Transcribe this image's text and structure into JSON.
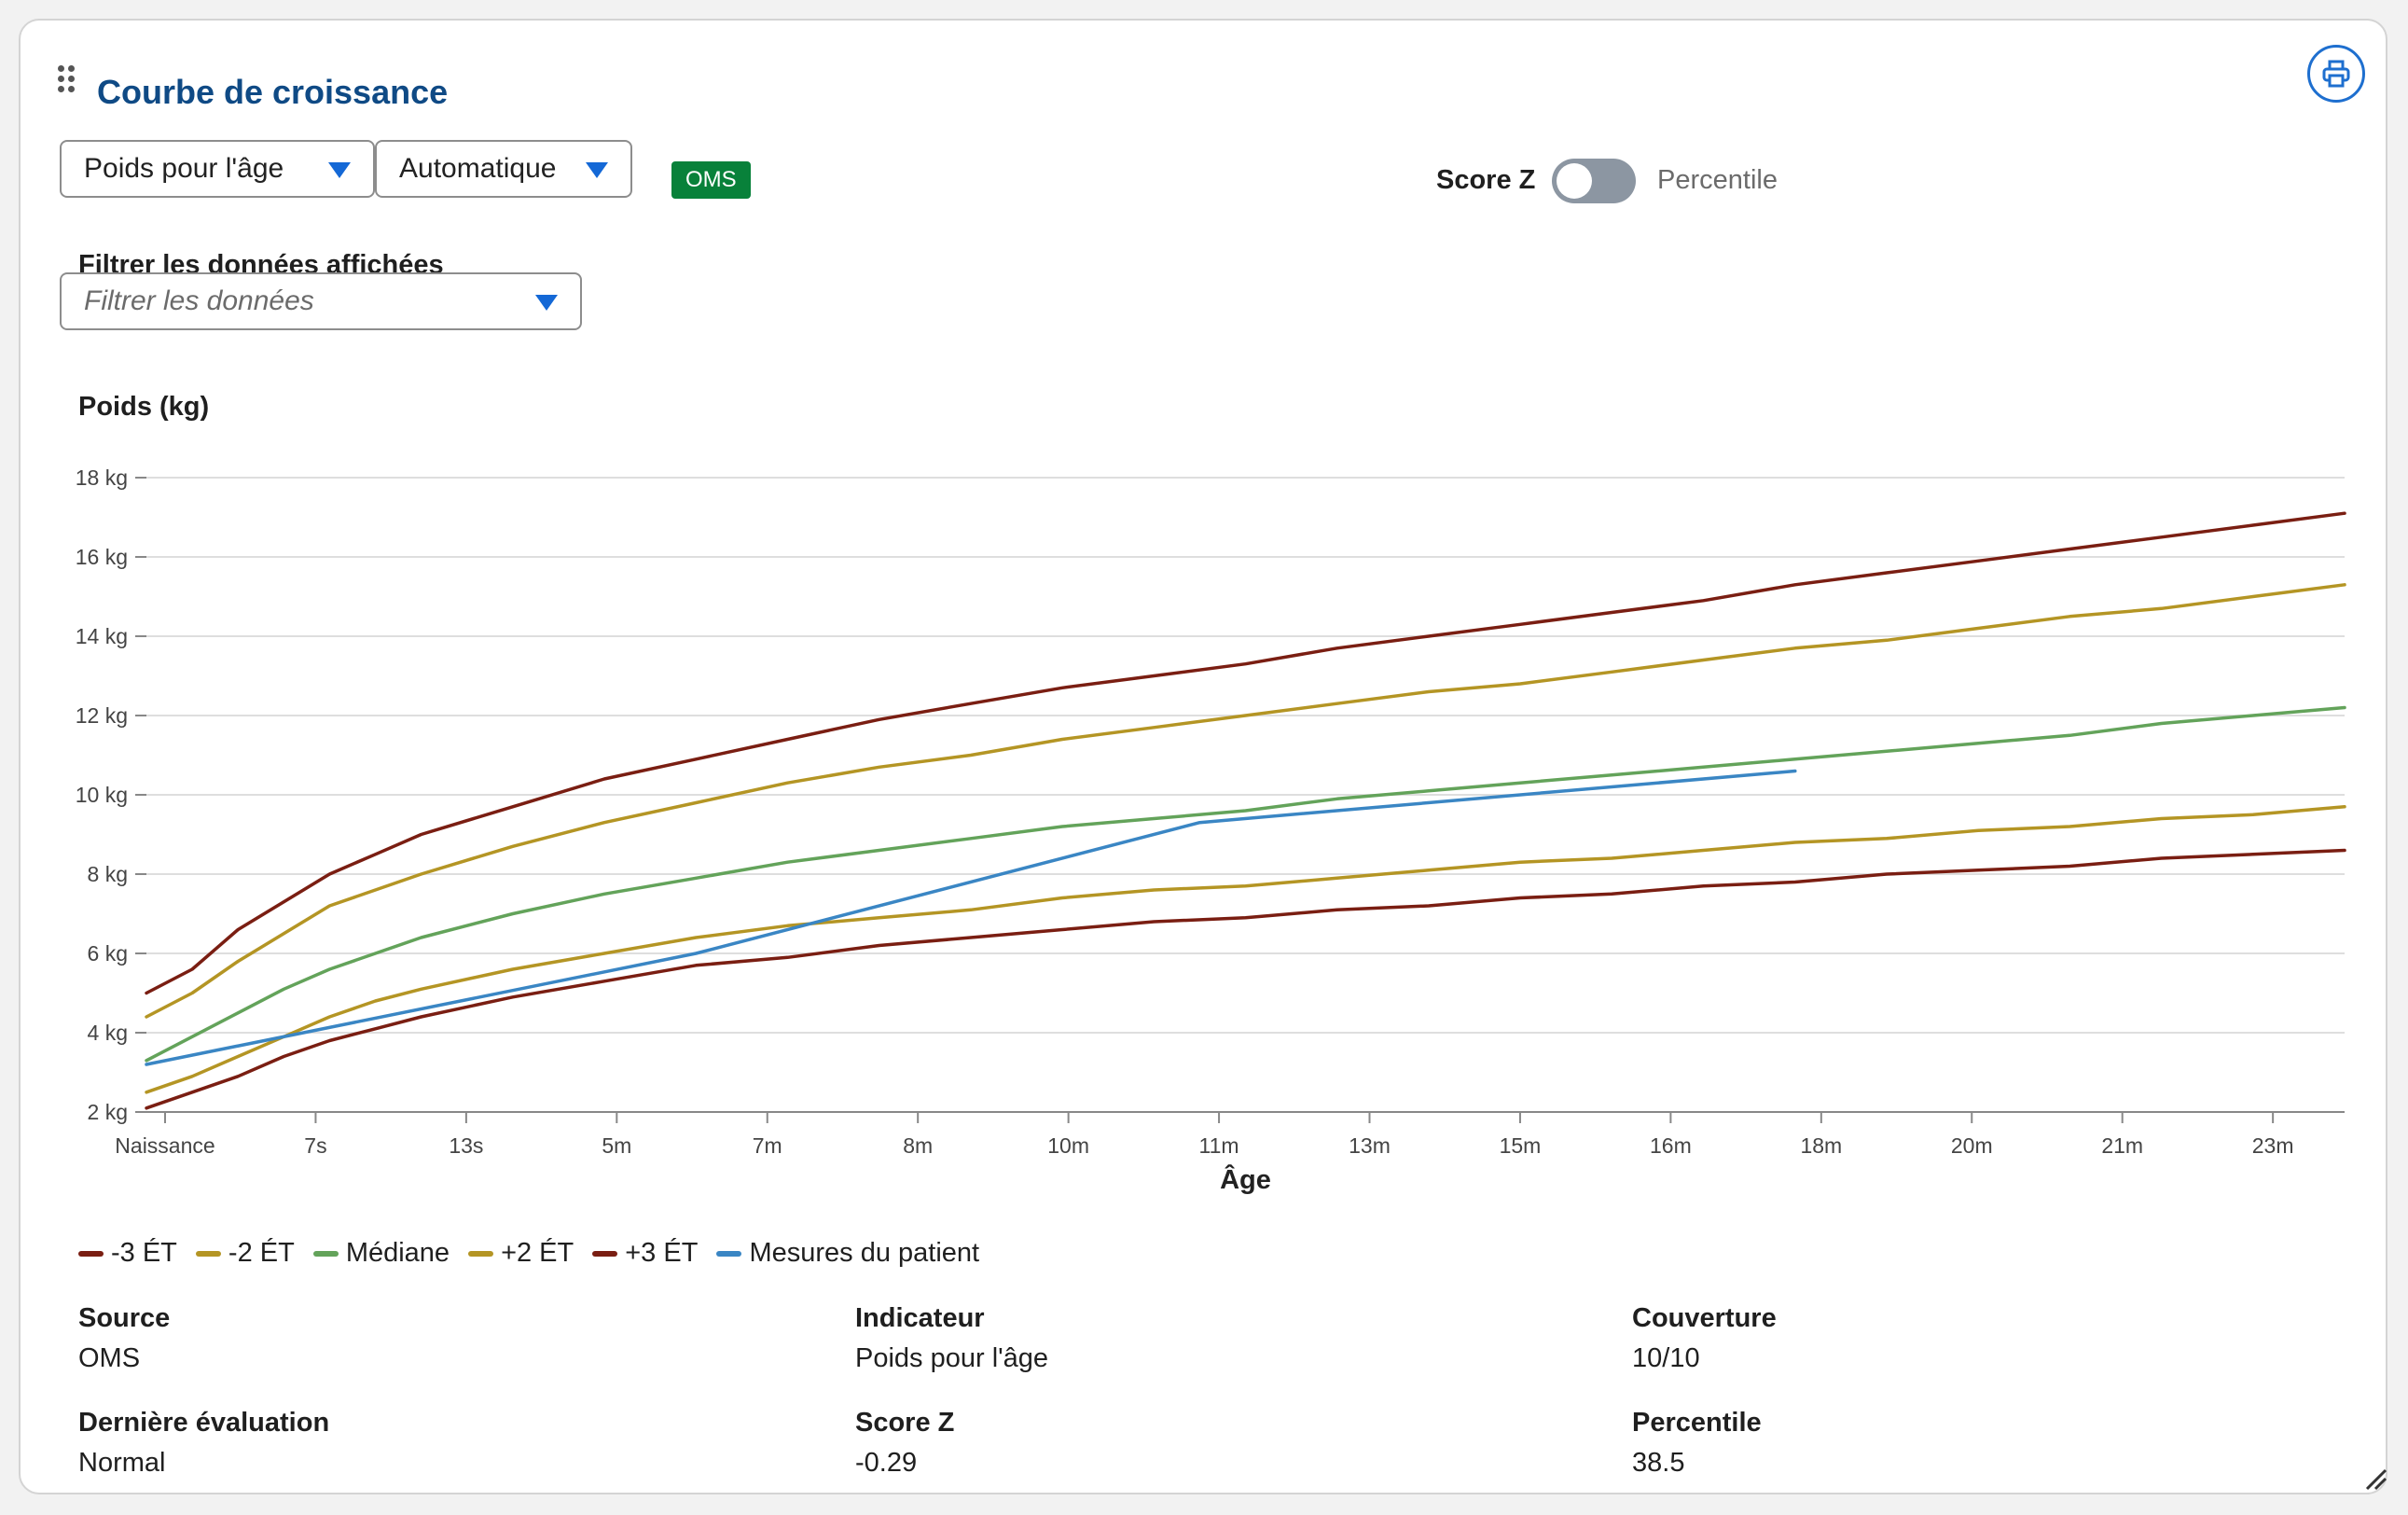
{
  "card": {
    "title": "Courbe de croissance"
  },
  "controls": {
    "indicator_select": "Poids pour l'âge",
    "mode_select": "Automatique",
    "source_badge": "OMS",
    "score_z_label": "Score Z",
    "percentile_label": "Percentile",
    "toggle_on": false,
    "filter_label": "Filtrer les données affichées",
    "filter_placeholder": "Filtrer les données"
  },
  "icons": {
    "print": "printer-icon",
    "drag": "drag-handle-icon",
    "resize": "resize-handle-icon"
  },
  "colors": {
    "sd3": "#7a1e12",
    "sd2": "#b49524",
    "median": "#63a35a",
    "patient": "#3a86c4",
    "title": "#0f4a85",
    "accent": "#1e6fcf",
    "badge": "#08813a"
  },
  "chart_data": {
    "type": "line",
    "ylabel": "Poids (kg)",
    "xlabel": "Âge",
    "x_tick_labels": [
      "Naissance",
      "7s",
      "13s",
      "5m",
      "7m",
      "8m",
      "10m",
      "11m",
      "13m",
      "15m",
      "16m",
      "18m",
      "20m",
      "21m",
      "23m"
    ],
    "y_ticks": [
      2,
      4,
      6,
      8,
      10,
      12,
      14,
      16,
      18
    ],
    "y_tick_labels": [
      "2 kg",
      "4 kg",
      "6 kg",
      "8 kg",
      "10 kg",
      "12 kg",
      "14 kg",
      "16 kg",
      "18 kg"
    ],
    "ylim": [
      2,
      18
    ],
    "x_unit": "months",
    "xlim": [
      0,
      24
    ],
    "grid": true,
    "legend_position": "bottom-left",
    "series": [
      {
        "name": "-3 ÉT",
        "color": "#7a1e12",
        "x": [
          0,
          0.5,
          1,
          1.5,
          2,
          2.5,
          3,
          4,
          5,
          6,
          7,
          8,
          9,
          10,
          11,
          12,
          13,
          14,
          15,
          16,
          17,
          18,
          19,
          20,
          21,
          22,
          23,
          24
        ],
        "y": [
          2.1,
          2.5,
          2.9,
          3.4,
          3.8,
          4.1,
          4.4,
          4.9,
          5.3,
          5.7,
          5.9,
          6.2,
          6.4,
          6.6,
          6.8,
          6.9,
          7.1,
          7.2,
          7.4,
          7.5,
          7.7,
          7.8,
          8.0,
          8.1,
          8.2,
          8.4,
          8.5,
          8.6
        ]
      },
      {
        "name": "-2 ÉT",
        "color": "#b49524",
        "x": [
          0,
          0.5,
          1,
          1.5,
          2,
          2.5,
          3,
          4,
          5,
          6,
          7,
          8,
          9,
          10,
          11,
          12,
          13,
          14,
          15,
          16,
          17,
          18,
          19,
          20,
          21,
          22,
          23,
          24
        ],
        "y": [
          2.5,
          2.9,
          3.4,
          3.9,
          4.4,
          4.8,
          5.1,
          5.6,
          6.0,
          6.4,
          6.7,
          6.9,
          7.1,
          7.4,
          7.6,
          7.7,
          7.9,
          8.1,
          8.3,
          8.4,
          8.6,
          8.8,
          8.9,
          9.1,
          9.2,
          9.4,
          9.5,
          9.7
        ]
      },
      {
        "name": "Médiane",
        "color": "#63a35a",
        "x": [
          0,
          0.5,
          1,
          1.5,
          2,
          2.5,
          3,
          4,
          5,
          6,
          7,
          8,
          9,
          10,
          11,
          12,
          13,
          14,
          15,
          16,
          17,
          18,
          19,
          20,
          21,
          22,
          23,
          24
        ],
        "y": [
          3.3,
          3.9,
          4.5,
          5.1,
          5.6,
          6.0,
          6.4,
          7.0,
          7.5,
          7.9,
          8.3,
          8.6,
          8.9,
          9.2,
          9.4,
          9.6,
          9.9,
          10.1,
          10.3,
          10.5,
          10.7,
          10.9,
          11.1,
          11.3,
          11.5,
          11.8,
          12.0,
          12.2
        ]
      },
      {
        "name": "+2 ÉT",
        "color": "#b49524",
        "x": [
          0,
          0.5,
          1,
          1.5,
          2,
          2.5,
          3,
          4,
          5,
          6,
          7,
          8,
          9,
          10,
          11,
          12,
          13,
          14,
          15,
          16,
          17,
          18,
          19,
          20,
          21,
          22,
          23,
          24
        ],
        "y": [
          4.4,
          5.0,
          5.8,
          6.5,
          7.2,
          7.6,
          8.0,
          8.7,
          9.3,
          9.8,
          10.3,
          10.7,
          11.0,
          11.4,
          11.7,
          12.0,
          12.3,
          12.6,
          12.8,
          13.1,
          13.4,
          13.7,
          13.9,
          14.2,
          14.5,
          14.7,
          15.0,
          15.3
        ]
      },
      {
        "name": "+3 ÉT",
        "color": "#7a1e12",
        "x": [
          0,
          0.5,
          1,
          1.5,
          2,
          2.5,
          3,
          4,
          5,
          6,
          7,
          8,
          9,
          10,
          11,
          12,
          13,
          14,
          15,
          16,
          17,
          18,
          19,
          20,
          21,
          22,
          23,
          24
        ],
        "y": [
          5.0,
          5.6,
          6.6,
          7.3,
          8.0,
          8.5,
          9.0,
          9.7,
          10.4,
          10.9,
          11.4,
          11.9,
          12.3,
          12.7,
          13.0,
          13.3,
          13.7,
          14.0,
          14.3,
          14.6,
          14.9,
          15.3,
          15.6,
          15.9,
          16.2,
          16.5,
          16.8,
          17.1
        ]
      },
      {
        "name": "Mesures du patient",
        "color": "#3a86c4",
        "x": [
          0,
          6,
          11.5,
          18
        ],
        "y": [
          3.2,
          6.0,
          9.3,
          10.6
        ]
      }
    ]
  },
  "stats": {
    "source_label": "Source",
    "source_value": "OMS",
    "indicator_label": "Indicateur",
    "indicator_value": "Poids pour l'âge",
    "coverage_label": "Couverture",
    "coverage_value": "10/10",
    "last_eval_label": "Dernière évaluation",
    "last_eval_value": "Normal",
    "zscore_label": "Score Z",
    "zscore_value": "-0.29",
    "percentile_label": "Percentile",
    "percentile_value": "38.5"
  }
}
